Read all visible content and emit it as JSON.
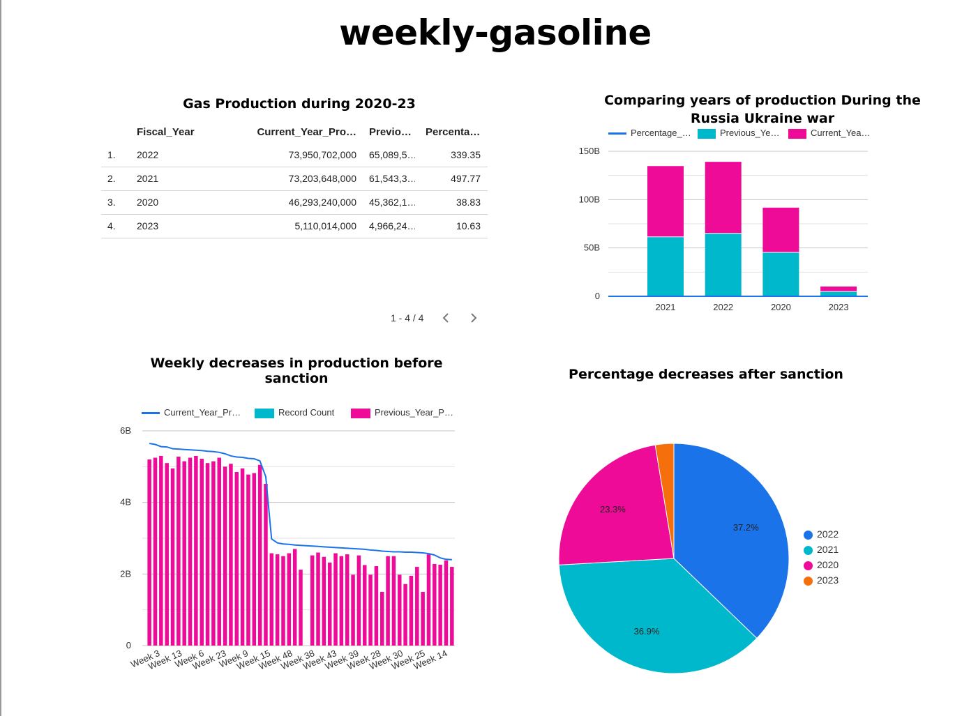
{
  "page": {
    "title": "weekly-gasoline"
  },
  "table": {
    "title": "Gas Production during 2020-23",
    "columns": [
      "Fiscal_Year",
      "Current_Year_Pro…",
      "Previo…",
      "Percenta…"
    ],
    "rows": [
      {
        "index": "1.",
        "fiscal_year": "2022",
        "current": "73,950,702,000",
        "previous": "65,089,5…",
        "percentage": "339.35"
      },
      {
        "index": "2.",
        "fiscal_year": "2021",
        "current": "73,203,648,000",
        "previous": "61,543,3…",
        "percentage": "497.77"
      },
      {
        "index": "3.",
        "fiscal_year": "2020",
        "current": "46,293,240,000",
        "previous": "45,362,1…",
        "percentage": "38.83"
      },
      {
        "index": "4.",
        "fiscal_year": "2023",
        "current": "5,110,014,000",
        "previous": "4,966,24…",
        "percentage": "10.63"
      }
    ],
    "pagination": "1 - 4 / 4"
  },
  "colors": {
    "blue": "#1a73e8",
    "cyan": "#00b8cc",
    "magenta": "#ee0b97",
    "orange": "#f5700c",
    "grid": "#d0d0d0"
  },
  "chart_data": [
    {
      "id": "years-comparison",
      "type": "bar",
      "stacked": true,
      "title": "Comparing years of production During the Russia Ukraine war",
      "legend": [
        "Percentage_…",
        "Previous_Ye…",
        "Current_Yea…"
      ],
      "categories": [
        "2021",
        "2022",
        "2020",
        "2023"
      ],
      "series": [
        {
          "name": "Previous_Ye…",
          "values": [
            61.5,
            65.1,
            45.4,
            5.0
          ],
          "color": "#00b8cc"
        },
        {
          "name": "Current_Yea…",
          "values": [
            73.2,
            74.0,
            46.3,
            5.1
          ],
          "color": "#ee0b97"
        },
        {
          "name": "Percentage_…",
          "values": [
            0.0,
            0.0,
            0.0,
            0.0
          ],
          "color": "#1a73e8",
          "line": true
        }
      ],
      "y_ticks": [
        "0",
        "50B",
        "100B",
        "150B"
      ],
      "ylim": [
        0,
        150
      ],
      "unit": "B",
      "grid": true,
      "legend_position": "top"
    },
    {
      "id": "weekly-decreases",
      "type": "bar",
      "title": "Weekly decreases in production before sanction",
      "legend": [
        "Current_Year_Pr…",
        "Record Count",
        "Previous_Year_P…"
      ],
      "x_tick_labels": [
        "Week 3",
        "Week 13",
        "Week 6",
        "Week 23",
        "Week 9",
        "Week 15",
        "Week 48",
        "Week 38",
        "Week 43",
        "Week 39",
        "Week 28",
        "Week 30",
        "Week 25",
        "Week 14"
      ],
      "y_ticks": [
        "0",
        "2B",
        "4B",
        "6B"
      ],
      "ylim": [
        0,
        6
      ],
      "unit": "B",
      "grid": true,
      "legend_position": "top",
      "series": [
        {
          "name": "Previous_Year_P…",
          "color": "#ee0b97",
          "values": [
            5.2,
            5.25,
            5.3,
            5.1,
            4.95,
            5.28,
            5.15,
            5.25,
            5.3,
            5.22,
            5.1,
            5.15,
            5.25,
            5.0,
            5.08,
            4.85,
            4.95,
            4.78,
            4.82,
            5.05,
            4.52,
            2.58,
            2.55,
            2.5,
            2.58,
            2.7,
            2.12,
            0,
            2.52,
            2.6,
            2.48,
            2.32,
            2.58,
            2.5,
            2.55,
            1.98,
            2.52,
            2.25,
            1.98,
            2.22,
            1.5,
            2.5,
            2.5,
            1.98,
            1.72,
            1.95,
            2.2,
            1.5,
            2.55,
            2.28,
            2.26,
            2.38,
            2.2
          ]
        },
        {
          "name": "Current_Year_Pr…",
          "color": "#1a73e8",
          "line": true,
          "values": [
            5.65,
            5.62,
            5.56,
            5.55,
            5.5,
            5.49,
            5.48,
            5.47,
            5.46,
            5.45,
            5.43,
            5.42,
            5.4,
            5.36,
            5.3,
            5.27,
            5.26,
            5.23,
            5.22,
            5.16,
            4.72,
            2.98,
            2.87,
            2.84,
            2.83,
            2.81,
            2.8,
            2.79,
            2.78,
            2.77,
            2.76,
            2.75,
            2.74,
            2.73,
            2.72,
            2.71,
            2.7,
            2.69,
            2.67,
            2.66,
            2.64,
            2.63,
            2.62,
            2.62,
            2.61,
            2.61,
            2.6,
            2.59,
            2.57,
            2.53,
            2.45,
            2.41,
            2.4
          ]
        },
        {
          "name": "Record Count",
          "color": "#00b8cc",
          "values": []
        }
      ]
    },
    {
      "id": "percentage-decreases",
      "type": "pie",
      "title": "Percentage decreases after sanction",
      "slices": [
        {
          "label": "2022",
          "value": 37.2,
          "display": "37.2%",
          "color": "#1a73e8"
        },
        {
          "label": "2021",
          "value": 36.9,
          "display": "36.9%",
          "color": "#00b8cc"
        },
        {
          "label": "2020",
          "value": 23.3,
          "display": "23.3%",
          "color": "#ee0b97"
        },
        {
          "label": "2023",
          "value": 2.6,
          "display": "",
          "color": "#f5700c"
        }
      ]
    }
  ]
}
